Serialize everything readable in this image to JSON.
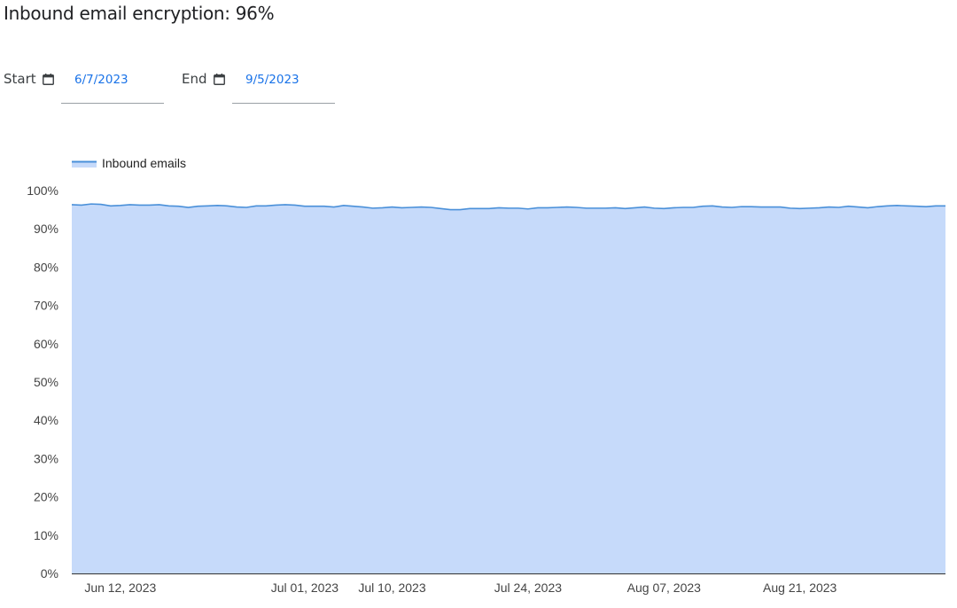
{
  "page": {
    "title": "Inbound email encryption: 96%"
  },
  "filters": {
    "start_label": "Start",
    "start_value": "6/7/2023",
    "end_label": "End",
    "end_value": "9/5/2023",
    "icon": "calendar-icon"
  },
  "colors": {
    "accent": "#1a73e8",
    "series_line": "#4a90d9",
    "series_fill": "#c6dafa",
    "axis": "#5f6368"
  },
  "chart_data": {
    "type": "area",
    "title": "",
    "xlabel": "",
    "ylabel": "",
    "ylim": [
      0,
      100
    ],
    "y_ticks": [
      "0%",
      "10%",
      "20%",
      "30%",
      "40%",
      "50%",
      "60%",
      "70%",
      "80%",
      "90%",
      "100%"
    ],
    "x_ticks": [
      {
        "date": "2023-06-12",
        "label": "Jun 12, 2023"
      },
      {
        "date": "2023-07-01",
        "label": "Jul 01, 2023"
      },
      {
        "date": "2023-07-10",
        "label": "Jul 10, 2023"
      },
      {
        "date": "2023-07-24",
        "label": "Jul 24, 2023"
      },
      {
        "date": "2023-08-07",
        "label": "Aug 07, 2023"
      },
      {
        "date": "2023-08-21",
        "label": "Aug 21, 2023"
      }
    ],
    "grid": false,
    "legend": "top-left",
    "series": [
      {
        "name": "Inbound emails",
        "points": [
          [
            "2023-06-07",
            96.3
          ],
          [
            "2023-06-08",
            96.2
          ],
          [
            "2023-06-09",
            96.5
          ],
          [
            "2023-06-10",
            96.4
          ],
          [
            "2023-06-11",
            96.0
          ],
          [
            "2023-06-12",
            96.1
          ],
          [
            "2023-06-13",
            96.3
          ],
          [
            "2023-06-14",
            96.2
          ],
          [
            "2023-06-15",
            96.2
          ],
          [
            "2023-06-16",
            96.3
          ],
          [
            "2023-06-17",
            96.0
          ],
          [
            "2023-06-18",
            95.9
          ],
          [
            "2023-06-19",
            95.6
          ],
          [
            "2023-06-20",
            95.9
          ],
          [
            "2023-06-21",
            96.0
          ],
          [
            "2023-06-22",
            96.1
          ],
          [
            "2023-06-23",
            96.0
          ],
          [
            "2023-06-24",
            95.7
          ],
          [
            "2023-06-25",
            95.6
          ],
          [
            "2023-06-26",
            96.0
          ],
          [
            "2023-06-27",
            96.0
          ],
          [
            "2023-06-28",
            96.2
          ],
          [
            "2023-06-29",
            96.3
          ],
          [
            "2023-06-30",
            96.2
          ],
          [
            "2023-07-01",
            95.9
          ],
          [
            "2023-07-02",
            95.9
          ],
          [
            "2023-07-03",
            95.9
          ],
          [
            "2023-07-04",
            95.7
          ],
          [
            "2023-07-05",
            96.1
          ],
          [
            "2023-07-06",
            95.9
          ],
          [
            "2023-07-07",
            95.7
          ],
          [
            "2023-07-08",
            95.4
          ],
          [
            "2023-07-09",
            95.5
          ],
          [
            "2023-07-10",
            95.7
          ],
          [
            "2023-07-11",
            95.5
          ],
          [
            "2023-07-12",
            95.6
          ],
          [
            "2023-07-13",
            95.7
          ],
          [
            "2023-07-14",
            95.6
          ],
          [
            "2023-07-15",
            95.3
          ],
          [
            "2023-07-16",
            95.0
          ],
          [
            "2023-07-17",
            95.0
          ],
          [
            "2023-07-18",
            95.3
          ],
          [
            "2023-07-19",
            95.3
          ],
          [
            "2023-07-20",
            95.3
          ],
          [
            "2023-07-21",
            95.5
          ],
          [
            "2023-07-22",
            95.4
          ],
          [
            "2023-07-23",
            95.4
          ],
          [
            "2023-07-24",
            95.2
          ],
          [
            "2023-07-25",
            95.5
          ],
          [
            "2023-07-26",
            95.5
          ],
          [
            "2023-07-27",
            95.6
          ],
          [
            "2023-07-28",
            95.7
          ],
          [
            "2023-07-29",
            95.6
          ],
          [
            "2023-07-30",
            95.4
          ],
          [
            "2023-07-31",
            95.4
          ],
          [
            "2023-08-01",
            95.4
          ],
          [
            "2023-08-02",
            95.5
          ],
          [
            "2023-08-03",
            95.3
          ],
          [
            "2023-08-04",
            95.5
          ],
          [
            "2023-08-05",
            95.7
          ],
          [
            "2023-08-06",
            95.4
          ],
          [
            "2023-08-07",
            95.3
          ],
          [
            "2023-08-08",
            95.5
          ],
          [
            "2023-08-09",
            95.6
          ],
          [
            "2023-08-10",
            95.6
          ],
          [
            "2023-08-11",
            95.9
          ],
          [
            "2023-08-12",
            96.0
          ],
          [
            "2023-08-13",
            95.7
          ],
          [
            "2023-08-14",
            95.6
          ],
          [
            "2023-08-15",
            95.8
          ],
          [
            "2023-08-16",
            95.8
          ],
          [
            "2023-08-17",
            95.7
          ],
          [
            "2023-08-18",
            95.7
          ],
          [
            "2023-08-19",
            95.7
          ],
          [
            "2023-08-20",
            95.4
          ],
          [
            "2023-08-21",
            95.3
          ],
          [
            "2023-08-22",
            95.4
          ],
          [
            "2023-08-23",
            95.5
          ],
          [
            "2023-08-24",
            95.7
          ],
          [
            "2023-08-25",
            95.6
          ],
          [
            "2023-08-26",
            95.9
          ],
          [
            "2023-08-27",
            95.7
          ],
          [
            "2023-08-28",
            95.5
          ],
          [
            "2023-08-29",
            95.8
          ],
          [
            "2023-08-30",
            96.0
          ],
          [
            "2023-08-31",
            96.1
          ],
          [
            "2023-09-01",
            96.0
          ],
          [
            "2023-09-02",
            95.9
          ],
          [
            "2023-09-03",
            95.8
          ],
          [
            "2023-09-04",
            96.0
          ],
          [
            "2023-09-05",
            96.0
          ]
        ]
      }
    ]
  }
}
